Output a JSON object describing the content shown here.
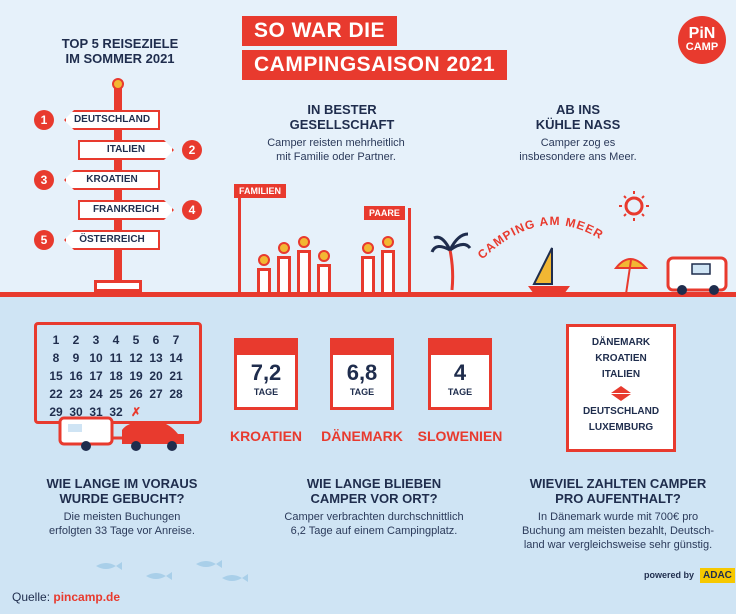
{
  "title": {
    "line1": "SO WAR DIE",
    "line2": "CAMPINGSAISON 2021"
  },
  "logo": {
    "line1": "PiN",
    "line2": "CAMP"
  },
  "top5": {
    "heading_line1": "TOP 5 REISEZIELE",
    "heading_line2": "IM SOMMER 2021",
    "items": [
      {
        "rank": "1",
        "name": "DEUTSCHLAND"
      },
      {
        "rank": "2",
        "name": "ITALIEN"
      },
      {
        "rank": "3",
        "name": "KROATIEN"
      },
      {
        "rank": "4",
        "name": "FRANKREICH"
      },
      {
        "rank": "5",
        "name": "ÖSTERREICH"
      }
    ]
  },
  "company": {
    "heading_line1": "IN BESTER",
    "heading_line2": "GESELLSCHAFT",
    "text_line1": "Camper reisten mehrheitlich",
    "text_line2": "mit Familie oder Partner.",
    "label_family": "FAMILIEN",
    "label_couples": "PAARE"
  },
  "water": {
    "heading_line1": "AB INS",
    "heading_line2": "KÜHLE NASS",
    "text_line1": "Camper zog es",
    "text_line2": "insbesondere ans Meer.",
    "arc_label": "CAMPING AM MEER"
  },
  "calendar": {
    "days": [
      "1",
      "2",
      "3",
      "4",
      "5",
      "6",
      "7",
      "8",
      "9",
      "10",
      "11",
      "12",
      "13",
      "14",
      "15",
      "16",
      "17",
      "18",
      "19",
      "20",
      "21",
      "22",
      "23",
      "24",
      "25",
      "26",
      "27",
      "28",
      "29",
      "30",
      "31",
      "32",
      "✗"
    ]
  },
  "durations": [
    {
      "value": "7,2",
      "unit": "TAGE",
      "country": "KROATIEN"
    },
    {
      "value": "6,8",
      "unit": "TAGE",
      "country": "DÄNEMARK"
    },
    {
      "value": "4",
      "unit": "TAGE",
      "country": "SLOWENIEN"
    }
  ],
  "prices": {
    "top": [
      "DÄNEMARK",
      "KROATIEN",
      "ITALIEN"
    ],
    "bottom": [
      "DEUTSCHLAND",
      "LUXEMBURG"
    ]
  },
  "booking": {
    "heading_line1": "WIE LANGE IM VORAUS",
    "heading_line2": "WURDE GEBUCHT?",
    "text_line1": "Die meisten Buchungen",
    "text_line2": "erfolgten 33 Tage vor Anreise."
  },
  "stay": {
    "heading_line1": "WIE LANGE BLIEBEN",
    "heading_line2": "CAMPER VOR ORT?",
    "text_line1": "Camper verbrachten durchschnittlich",
    "text_line2": "6,2 Tage auf einem Campingplatz."
  },
  "cost": {
    "heading_line1": "WIEVIEL ZAHLTEN CAMPER",
    "heading_line2": "PRO AUFENTHALT?",
    "text_line1": "In Dänemark wurde mit 700€ pro",
    "text_line2": "Buchung am meisten bezahlt, Deutsch-",
    "text_line3": "land war vergleichsweise sehr günstig."
  },
  "footer": {
    "source_label": "Quelle: ",
    "source_link": "pincamp.de",
    "powered_by": "powered by",
    "adac": "ADAC"
  },
  "colors": {
    "accent": "#e83a2e",
    "navy": "#1f2d4d",
    "sky": "#e6f1fa",
    "sea": "#cfe4f4"
  }
}
